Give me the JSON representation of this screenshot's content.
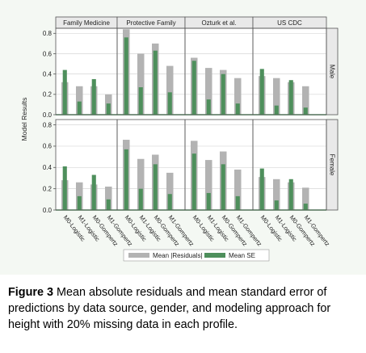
{
  "chart_data": {
    "type": "bar",
    "ylabel": "Model Results",
    "yticks": [
      "0.0",
      "0.2",
      "0.4",
      "0.6",
      "0.8"
    ],
    "ylim": [
      0,
      0.85
    ],
    "columns": [
      "Family Medicine",
      "Protective Family",
      "Ozturk et al.",
      "US CDC"
    ],
    "rows": [
      "Male",
      "Female"
    ],
    "categories": [
      "M0-Logistic",
      "M1-Logistic",
      "M0-Gompertz",
      "M1-Gompertz"
    ],
    "legend": {
      "position": "bottom-right",
      "series_labels": [
        "Mean |Residuals|",
        "Mean SE"
      ]
    },
    "series_colors": {
      "residuals": "#b3b3b3",
      "se": "#4e8f5c"
    },
    "panels": [
      {
        "row": "Male",
        "column": "Family Medicine",
        "residuals": [
          0.32,
          0.28,
          0.28,
          0.2
        ],
        "se": [
          0.44,
          0.13,
          0.35,
          0.11
        ]
      },
      {
        "row": "Male",
        "column": "Protective Family",
        "residuals": [
          0.84,
          0.6,
          0.7,
          0.48
        ],
        "se": [
          0.76,
          0.27,
          0.63,
          0.22
        ]
      },
      {
        "row": "Male",
        "column": "Ozturk et al.",
        "residuals": [
          0.56,
          0.46,
          0.44,
          0.36
        ],
        "se": [
          0.53,
          0.15,
          0.4,
          0.11
        ]
      },
      {
        "row": "Male",
        "column": "US CDC",
        "residuals": [
          0.38,
          0.36,
          0.32,
          0.28
        ],
        "se": [
          0.45,
          0.09,
          0.34,
          0.07
        ]
      },
      {
        "row": "Female",
        "column": "Family Medicine",
        "residuals": [
          0.28,
          0.26,
          0.24,
          0.22
        ],
        "se": [
          0.41,
          0.13,
          0.33,
          0.1
        ]
      },
      {
        "row": "Female",
        "column": "Protective Family",
        "residuals": [
          0.66,
          0.48,
          0.52,
          0.35
        ],
        "se": [
          0.57,
          0.2,
          0.43,
          0.15
        ]
      },
      {
        "row": "Female",
        "column": "Ozturk et al.",
        "residuals": [
          0.65,
          0.47,
          0.55,
          0.38
        ],
        "se": [
          0.53,
          0.16,
          0.43,
          0.13
        ]
      },
      {
        "row": "Female",
        "column": "US CDC",
        "residuals": [
          0.31,
          0.29,
          0.26,
          0.21
        ],
        "se": [
          0.39,
          0.09,
          0.29,
          0.06
        ]
      }
    ]
  },
  "caption": {
    "label": "Figure 3",
    "text": " Mean absolute residuals and mean standard error of predictions by data source, gender, and modeling approach for height with 20% missing data in each profile."
  }
}
